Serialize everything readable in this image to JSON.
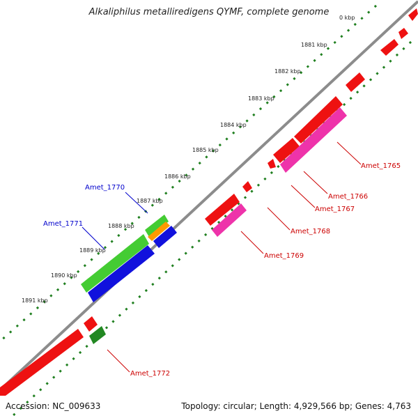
{
  "title": "Alkaliphilus metalliredigens QYMF, complete genome",
  "accession": "Accession: NC_009633",
  "topology": "Topology: circular; Length: 4,929,566 bp; Genes: 4,763",
  "ticks": [
    "0 kbp",
    "1881 kbp",
    "1882 kbp",
    "1883 kbp",
    "1884 kbp",
    "1885 kbp",
    "1886 kbp",
    "1887 kbp",
    "1888 kbp",
    "1889 kbp",
    "1890 kbp",
    "1891 kbp"
  ],
  "gene_labels": {
    "amet_1765": "Amet_1765",
    "amet_1766": "Amet_1766",
    "amet_1767": "Amet_1767",
    "amet_1768": "Amet_1768",
    "amet_1769": "Amet_1769",
    "amet_1770": "Amet_1770",
    "amet_1771": "Amet_1771",
    "amet_1772": "Amet_1772"
  },
  "colors": {
    "backbone": "#8c8c8c",
    "tick_dots": "#1f7f1f",
    "red_gene": "#ee1111",
    "pink_gene": "#ee33aa",
    "green_gene": "#44cc33",
    "dark_green_gene": "#228822",
    "orange_gene": "#ff9900",
    "blue_gene": "#1111dd",
    "label_red": "#cc0000",
    "label_blue": "#0000cc"
  }
}
